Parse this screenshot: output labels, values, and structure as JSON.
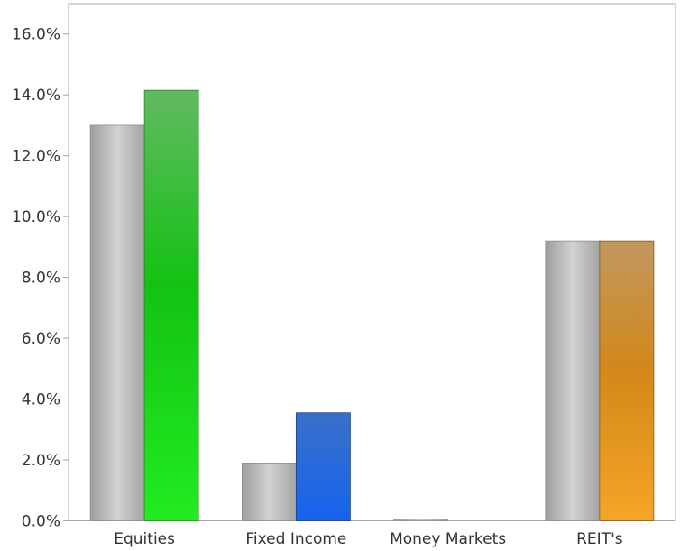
{
  "chart_data": {
    "type": "bar",
    "categories": [
      "Equities",
      "Fixed Income",
      "Money Markets",
      "REIT's"
    ],
    "series": [
      {
        "values": [
          13.0,
          1.9,
          0.05,
          9.2
        ],
        "color": "#b3b3b3"
      },
      {
        "values": [
          14.15,
          3.55,
          0.0,
          9.2
        ],
        "colors": [
          "#1fd31f",
          "#1a5fe0",
          "#cccccc",
          "#e0901c"
        ]
      }
    ],
    "ylim": [
      0,
      17
    ],
    "yticks": [
      0,
      2,
      4,
      6,
      8,
      10,
      12,
      14,
      16
    ],
    "ytick_labels": [
      "0.0%",
      "2.0%",
      "4.0%",
      "6.0%",
      "8.0%",
      "10.0%",
      "12.0%",
      "14.0%",
      "16.0%"
    ],
    "title": "",
    "xlabel": "",
    "ylabel": "",
    "grid": false,
    "legend": "none"
  }
}
